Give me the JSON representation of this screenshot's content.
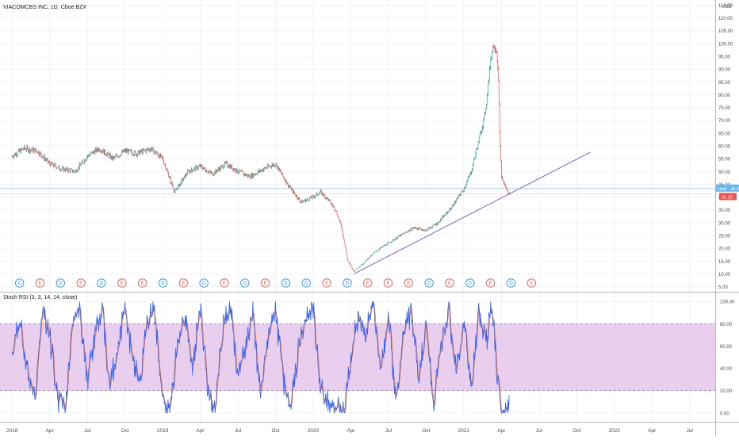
{
  "header": {
    "symbol_title": "VIACOMCBS INC, 1D, Cboe BZX"
  },
  "price_axis": {
    "currency": "USD",
    "ticks": [
      "5.00",
      "10.00",
      "15.00",
      "20.00",
      "25.00",
      "30.00",
      "35.00",
      "40.00",
      "45.00",
      "50.00",
      "55.00",
      "60.00",
      "65.00",
      "70.00",
      "75.00",
      "80.00",
      "85.00",
      "90.00",
      "95.00",
      "100.00",
      "105.00",
      "110.00",
      "115.00"
    ],
    "hold_tag": "Hold · 43.34",
    "last_price_tag": "41.29"
  },
  "rsi_panel": {
    "title": "Stoch RSI (3, 3, 14, 14, close)",
    "ticks": [
      "0.00",
      "20.00",
      "40.00",
      "60.00",
      "80.00",
      "100.00"
    ],
    "upper_band": 80,
    "lower_band": 20
  },
  "time_axis": {
    "labels": [
      "2018",
      "Apr",
      "Jul",
      "Oct",
      "2019",
      "Apr",
      "Jul",
      "Oct",
      "2020",
      "Apr",
      "Jul",
      "Oct",
      "2021",
      "Apr",
      "Jul",
      "Oct",
      "2022",
      "Apr",
      "Jul"
    ]
  },
  "events": {
    "dividend_letter": "D",
    "earnings_letter": "E",
    "sequence": [
      "D",
      "E",
      "D",
      "E",
      "D",
      "E",
      "E",
      "D",
      "E",
      "D",
      "E",
      "D",
      "E",
      "D",
      "D",
      "E",
      "D",
      "E",
      "E",
      "E",
      "D",
      "E",
      "D",
      "E",
      "D",
      "E"
    ],
    "dividend_color": "#2196f3",
    "earnings_color": "#ef5350"
  },
  "colors": {
    "up": "#26a69a",
    "down": "#ef5350",
    "trendline": "#7b61d6",
    "stoch_k": "#2962ff",
    "stoch_d": "#ff6d00",
    "band_fill": "#e1bee7",
    "hold_line": "#64b5f6",
    "last_price_line": "#ef9a9a"
  },
  "chart_data": [
    {
      "type": "line",
      "series": [
        {
          "values": [
            [
              2018.0,
              56
            ],
            [
              2018.08,
              59
            ],
            [
              2018.17,
              58
            ],
            [
              2018.25,
              53
            ],
            [
              2018.33,
              51
            ],
            [
              2018.42,
              50
            ],
            [
              2018.5,
              56
            ],
            [
              2018.58,
              59
            ],
            [
              2018.67,
              55
            ],
            [
              2018.75,
              58
            ],
            [
              2018.83,
              57
            ],
            [
              2018.92,
              59
            ],
            [
              2019.0,
              55
            ],
            [
              2019.05,
              47
            ],
            [
              2019.08,
              42
            ],
            [
              2019.17,
              50
            ],
            [
              2019.25,
              52
            ],
            [
              2019.33,
              49
            ],
            [
              2019.42,
              53
            ],
            [
              2019.5,
              50
            ],
            [
              2019.58,
              48
            ],
            [
              2019.67,
              51
            ],
            [
              2019.75,
              53
            ],
            [
              2019.83,
              45
            ],
            [
              2019.92,
              38
            ],
            [
              2020.0,
              40
            ],
            [
              2020.05,
              42
            ],
            [
              2020.1,
              39
            ],
            [
              2020.15,
              35
            ],
            [
              2020.19,
              28
            ],
            [
              2020.23,
              15
            ],
            [
              2020.27,
              11
            ],
            [
              2020.33,
              14
            ],
            [
              2020.42,
              19
            ],
            [
              2020.5,
              22
            ],
            [
              2020.58,
              25
            ],
            [
              2020.67,
              28
            ],
            [
              2020.75,
              27
            ],
            [
              2020.83,
              30
            ],
            [
              2020.92,
              36
            ],
            [
              2021.0,
              43
            ],
            [
              2021.05,
              50
            ],
            [
              2021.1,
              62
            ],
            [
              2021.14,
              72
            ],
            [
              2021.16,
              82
            ],
            [
              2021.18,
              95
            ],
            [
              2021.2,
              100
            ],
            [
              2021.22,
              97
            ],
            [
              2021.23,
              85
            ],
            [
              2021.24,
              62
            ],
            [
              2021.25,
              48
            ],
            [
              2021.27,
              45
            ],
            [
              2021.3,
              41.29
            ]
          ]
        }
      ],
      "ylim": [
        3,
        117
      ]
    },
    {
      "type": "line",
      "series": [
        {
          "values": [
            [
              2018.0,
              55
            ],
            [
              2018.05,
              85
            ],
            [
              2018.1,
              40
            ],
            [
              2018.15,
              10
            ],
            [
              2018.2,
              95
            ],
            [
              2018.25,
              70
            ],
            [
              2018.3,
              15
            ],
            [
              2018.35,
              5
            ],
            [
              2018.4,
              80
            ],
            [
              2018.45,
              90
            ],
            [
              2018.5,
              30
            ],
            [
              2018.55,
              70
            ],
            [
              2018.6,
              95
            ],
            [
              2018.65,
              20
            ],
            [
              2018.7,
              60
            ],
            [
              2018.75,
              95
            ],
            [
              2018.8,
              50
            ],
            [
              2018.85,
              25
            ],
            [
              2018.9,
              85
            ],
            [
              2018.95,
              90
            ],
            [
              2019.0,
              10
            ],
            [
              2019.05,
              5
            ],
            [
              2019.1,
              60
            ],
            [
              2019.15,
              90
            ],
            [
              2019.2,
              40
            ],
            [
              2019.25,
              95
            ],
            [
              2019.3,
              20
            ],
            [
              2019.35,
              5
            ],
            [
              2019.4,
              75
            ],
            [
              2019.45,
              95
            ],
            [
              2019.5,
              35
            ],
            [
              2019.55,
              60
            ],
            [
              2019.6,
              90
            ],
            [
              2019.65,
              15
            ],
            [
              2019.7,
              70
            ],
            [
              2019.75,
              95
            ],
            [
              2019.8,
              30
            ],
            [
              2019.85,
              5
            ],
            [
              2019.9,
              55
            ],
            [
              2019.95,
              85
            ],
            [
              2020.0,
              95
            ],
            [
              2020.05,
              20
            ],
            [
              2020.1,
              10
            ],
            [
              2020.15,
              5
            ],
            [
              2020.2,
              0
            ],
            [
              2020.25,
              45
            ],
            [
              2020.3,
              90
            ],
            [
              2020.35,
              75
            ],
            [
              2020.4,
              95
            ],
            [
              2020.45,
              40
            ],
            [
              2020.5,
              85
            ],
            [
              2020.55,
              10
            ],
            [
              2020.6,
              70
            ],
            [
              2020.65,
              95
            ],
            [
              2020.7,
              25
            ],
            [
              2020.75,
              80
            ],
            [
              2020.8,
              5
            ],
            [
              2020.85,
              60
            ],
            [
              2020.9,
              95
            ],
            [
              2020.95,
              35
            ],
            [
              2021.0,
              85
            ],
            [
              2021.05,
              20
            ],
            [
              2021.1,
              90
            ],
            [
              2021.15,
              60
            ],
            [
              2021.18,
              95
            ],
            [
              2021.2,
              80
            ],
            [
              2021.22,
              40
            ],
            [
              2021.25,
              0
            ],
            [
              2021.28,
              2
            ],
            [
              2021.3,
              4
            ]
          ]
        }
      ],
      "ylim": [
        -8,
        108
      ]
    }
  ]
}
